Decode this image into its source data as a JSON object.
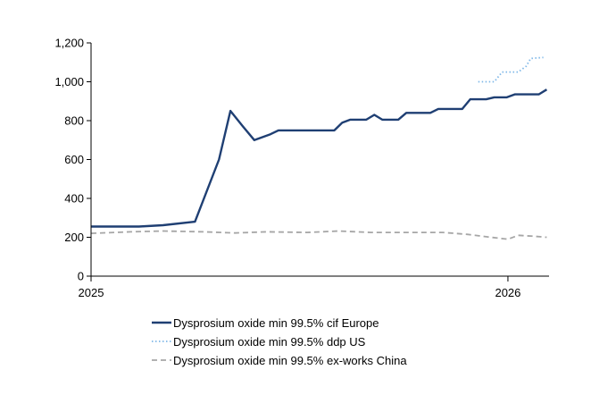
{
  "chart_data": {
    "type": "line",
    "title": "",
    "xlabel": "",
    "ylabel": "",
    "ylim": [
      0,
      1200
    ],
    "yticks": [
      "0",
      "200",
      "400",
      "600",
      "800",
      "1,000",
      "1,200"
    ],
    "ytick_values": [
      0,
      200,
      400,
      600,
      800,
      1000,
      1200
    ],
    "xticks": [
      {
        "label": "2025",
        "value": "2025-01-01"
      },
      {
        "label": "2026",
        "value": "2026-01-01"
      }
    ],
    "xlim": [
      "2025-01-01",
      "2026-02-06"
    ],
    "grid": false,
    "legend_position": "bottom",
    "series": [
      {
        "name": "Dysprosium oxide min 99.5% cif Europe",
        "color": "#1f3f73",
        "style": "solid",
        "points": [
          [
            "2025-01-01",
            255
          ],
          [
            "2025-02-12",
            255
          ],
          [
            "2025-03-05",
            262
          ],
          [
            "2025-04-02",
            280
          ],
          [
            "2025-04-23",
            600
          ],
          [
            "2025-05-03",
            850
          ],
          [
            "2025-05-14",
            770
          ],
          [
            "2025-05-24",
            700
          ],
          [
            "2025-06-07",
            730
          ],
          [
            "2025-06-14",
            750
          ],
          [
            "2025-07-12",
            750
          ],
          [
            "2025-08-02",
            750
          ],
          [
            "2025-08-09",
            790
          ],
          [
            "2025-08-16",
            805
          ],
          [
            "2025-08-30",
            805
          ],
          [
            "2025-09-06",
            830
          ],
          [
            "2025-09-13",
            805
          ],
          [
            "2025-09-27",
            805
          ],
          [
            "2025-10-04",
            840
          ],
          [
            "2025-10-25",
            840
          ],
          [
            "2025-11-01",
            860
          ],
          [
            "2025-11-22",
            860
          ],
          [
            "2025-11-29",
            910
          ],
          [
            "2025-12-13",
            910
          ],
          [
            "2025-12-20",
            920
          ],
          [
            "2025-12-31",
            920
          ],
          [
            "2026-01-07",
            935
          ],
          [
            "2026-01-21",
            935
          ],
          [
            "2026-01-28",
            935
          ],
          [
            "2026-02-04",
            960
          ]
        ]
      },
      {
        "name": "Dysprosium oxide min 99.5% ddp US",
        "color": "#7fb8e8",
        "style": "dotted",
        "points": [
          [
            "2025-12-06",
            1000
          ],
          [
            "2025-12-20",
            1000
          ],
          [
            "2025-12-27",
            1050
          ],
          [
            "2026-01-10",
            1050
          ],
          [
            "2026-01-17",
            1080
          ],
          [
            "2026-01-21",
            1120
          ],
          [
            "2026-02-01",
            1125
          ]
        ]
      },
      {
        "name": "Dysprosium oxide min 99.5% ex-works China",
        "color": "#a6a6a6",
        "style": "dashed",
        "points": [
          [
            "2025-01-01",
            220
          ],
          [
            "2025-02-05",
            228
          ],
          [
            "2025-03-05",
            232
          ],
          [
            "2025-04-09",
            228
          ],
          [
            "2025-05-07",
            222
          ],
          [
            "2025-06-04",
            228
          ],
          [
            "2025-07-09",
            225
          ],
          [
            "2025-08-06",
            232
          ],
          [
            "2025-09-03",
            225
          ],
          [
            "2025-10-01",
            225
          ],
          [
            "2025-11-05",
            225
          ],
          [
            "2025-11-26",
            215
          ],
          [
            "2025-12-17",
            200
          ],
          [
            "2026-01-01",
            190
          ],
          [
            "2026-01-10",
            210
          ],
          [
            "2026-01-24",
            205
          ],
          [
            "2026-02-04",
            200
          ]
        ]
      }
    ]
  }
}
